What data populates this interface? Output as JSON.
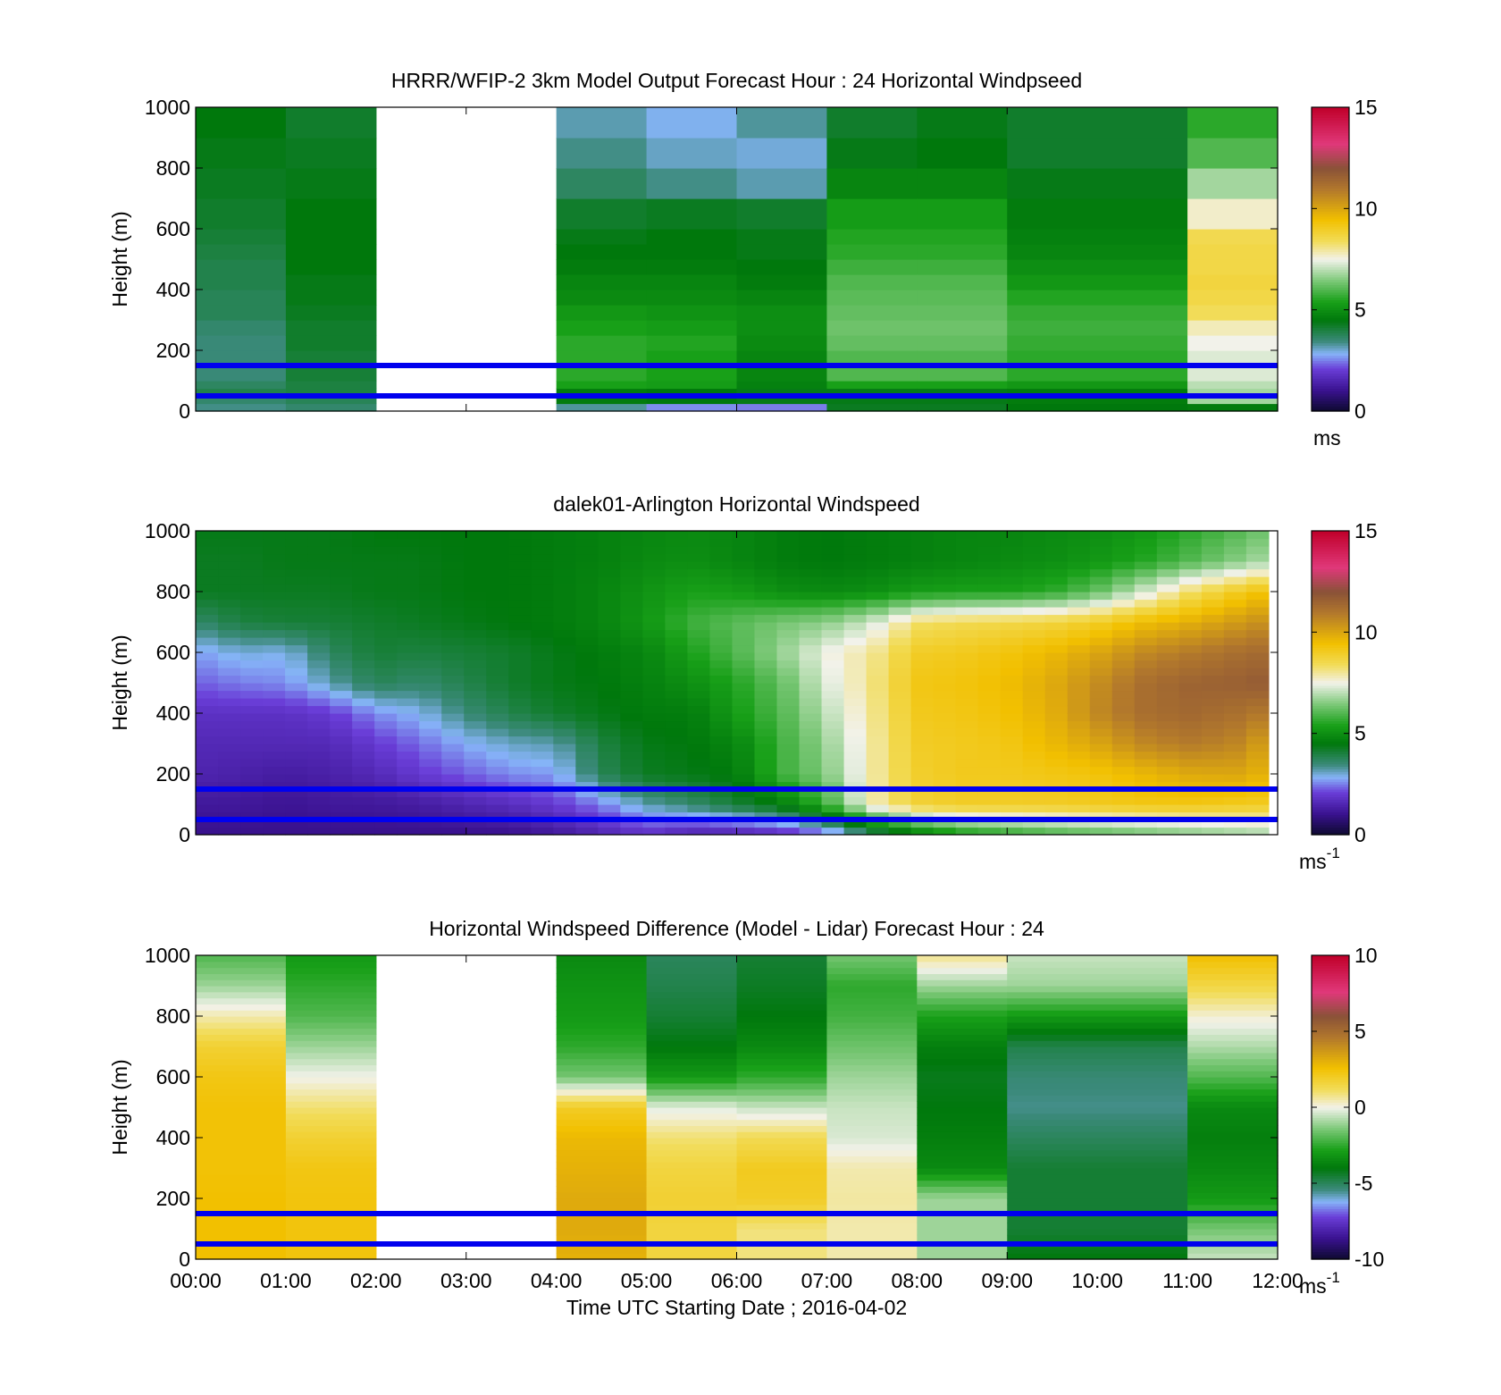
{
  "colors": {
    "ref_line": "#0000ee",
    "axis": "#000000",
    "background": "#ffffff"
  },
  "x_ticks": [
    "00:00",
    "01:00",
    "02:00",
    "03:00",
    "04:00",
    "05:00",
    "06:00",
    "07:00",
    "08:00",
    "09:00",
    "10:00",
    "11:00",
    "12:00"
  ],
  "xlabel": "Time UTC  Starting Date ; 2016-04-02",
  "chart_data": [
    {
      "type": "heatmap",
      "title": "HRRR/WFIP-2 3km Model Output   Forecast Hour : 24 Horizontal Windpseed",
      "ylabel": "Height (m)",
      "ylim": [
        0,
        1000
      ],
      "y_ticks": [
        "0",
        "200",
        "400",
        "600",
        "800",
        "1000"
      ],
      "xlim_hours": [
        0,
        12
      ],
      "colorbar": {
        "min": 0,
        "max": 15,
        "ticks": [
          "0",
          "5",
          "10",
          "15"
        ],
        "unit": "ms",
        "unit_sup": ""
      },
      "ref_lines_m": [
        50,
        150
      ],
      "layers_m": [
        0,
        25,
        50,
        75,
        100,
        150,
        200,
        250,
        300,
        350,
        400,
        450,
        500,
        550,
        600,
        700,
        800,
        900,
        1000
      ],
      "columns": [
        {
          "start": 0,
          "end": 1,
          "values": [
            3.4,
            3.6,
            3.9,
            3.7,
            3.5,
            3.5,
            3.5,
            3.6,
            3.8,
            3.8,
            3.9,
            3.9,
            4.0,
            4.1,
            4.2,
            4.3,
            4.4,
            4.5
          ]
        },
        {
          "start": 1,
          "end": 2,
          "values": [
            3.6,
            3.8,
            4.0,
            4.0,
            4.1,
            4.1,
            4.2,
            4.2,
            4.3,
            4.4,
            4.4,
            4.5,
            4.5,
            4.5,
            4.5,
            4.4,
            4.3,
            4.2
          ]
        },
        {
          "start": 4,
          "end": 5,
          "values": [
            3.3,
            4.6,
            4.6,
            5.4,
            5.6,
            5.6,
            5.6,
            5.4,
            5.2,
            4.9,
            4.8,
            4.6,
            4.5,
            4.4,
            4.2,
            3.7,
            3.4,
            3.2
          ]
        },
        {
          "start": 5,
          "end": 6,
          "values": [
            2.6,
            4.5,
            4.5,
            5.3,
            5.4,
            5.4,
            5.5,
            5.3,
            5.1,
            4.9,
            4.8,
            4.6,
            4.5,
            4.5,
            4.3,
            3.4,
            3.1,
            2.9
          ]
        },
        {
          "start": 6,
          "end": 7,
          "values": [
            2.5,
            4.4,
            4.4,
            4.7,
            4.8,
            4.8,
            4.9,
            5.0,
            5.0,
            4.8,
            4.6,
            4.5,
            4.4,
            4.4,
            4.2,
            3.2,
            3.0,
            3.3
          ]
        },
        {
          "start": 7,
          "end": 8,
          "values": [
            4.3,
            4.4,
            4.4,
            5.4,
            6.0,
            6.0,
            6.2,
            6.3,
            6.2,
            6.1,
            6.0,
            5.8,
            5.6,
            5.5,
            5.3,
            4.8,
            4.4,
            4.2
          ]
        },
        {
          "start": 8,
          "end": 9,
          "values": [
            4.3,
            4.4,
            4.4,
            5.4,
            6.0,
            6.0,
            6.2,
            6.3,
            6.2,
            6.1,
            6.0,
            5.8,
            5.6,
            5.5,
            5.3,
            4.8,
            4.5,
            4.4
          ]
        },
        {
          "start": 9,
          "end": 11,
          "values": [
            4.5,
            4.6,
            4.6,
            5.2,
            5.6,
            5.6,
            5.7,
            5.8,
            5.7,
            5.5,
            5.2,
            5.0,
            4.8,
            4.7,
            4.6,
            4.4,
            4.2,
            4.2
          ]
        },
        {
          "start": 11,
          "end": 12,
          "values": [
            4.6,
            6.8,
            6.8,
            7.0,
            7.3,
            7.3,
            7.5,
            7.8,
            8.4,
            8.6,
            8.7,
            8.6,
            8.6,
            8.5,
            7.7,
            6.8,
            6.0,
            5.6
          ]
        }
      ]
    },
    {
      "type": "heatmap",
      "title": "dalek01-Arlington  Horizontal Windspeed",
      "ylabel": "Height (m)",
      "ylim": [
        0,
        1000
      ],
      "y_ticks": [
        "0",
        "200",
        "400",
        "600",
        "800",
        "1000"
      ],
      "xlim_hours": [
        0,
        12
      ],
      "colorbar": {
        "min": 0,
        "max": 15,
        "ticks": [
          "0",
          "5",
          "10",
          "15"
        ],
        "unit": "ms",
        "unit_sup": "-1"
      },
      "ref_lines_m": [
        50,
        150
      ],
      "field": {
        "hours": [
          0,
          0.5,
          1,
          1.5,
          2,
          2.5,
          3,
          3.5,
          4,
          4.5,
          5,
          5.5,
          6,
          6.5,
          7,
          7.5,
          8,
          8.5,
          9,
          9.5,
          10,
          10.5,
          11,
          11.5,
          12
        ],
        "heights": [
          0,
          100,
          200,
          300,
          400,
          500,
          600,
          700,
          800,
          900,
          1000
        ],
        "values": [
          [
            1.0,
            1.0,
            1.0,
            1.0,
            1.0,
            1.0,
            1.0,
            1.0,
            1.2,
            1.5,
            1.8,
            1.4,
            1.4,
            1.6,
            2.2,
            3.5,
            4.5,
            5.2,
            5.5,
            5.8,
            6.0,
            6.2,
            6.4,
            6.6,
            6.8
          ],
          [
            1.2,
            1.2,
            1.1,
            1.2,
            1.2,
            1.3,
            1.5,
            1.7,
            2.0,
            2.5,
            3.2,
            3.6,
            4.1,
            4.6,
            5.8,
            7.8,
            8.8,
            9.0,
            9.0,
            9.0,
            9.1,
            9.2,
            9.2,
            9.1,
            9.0
          ],
          [
            1.5,
            1.4,
            1.3,
            1.4,
            1.6,
            2.0,
            2.3,
            2.6,
            2.7,
            3.8,
            4.3,
            4.4,
            4.6,
            5.8,
            6.5,
            7.9,
            8.9,
            9.1,
            9.1,
            9.2,
            9.3,
            9.6,
            9.9,
            10.0,
            9.6
          ],
          [
            1.6,
            1.6,
            1.6,
            1.6,
            2.0,
            2.4,
            2.8,
            3.1,
            3.2,
            4.0,
            4.4,
            4.5,
            4.8,
            5.8,
            6.7,
            7.9,
            9.0,
            9.1,
            9.2,
            9.6,
            10.0,
            10.6,
            10.9,
            10.7,
            9.9
          ],
          [
            1.8,
            1.8,
            1.8,
            2.0,
            2.6,
            2.9,
            3.5,
            3.9,
            4.2,
            4.4,
            4.6,
            4.6,
            5.3,
            6.0,
            7.0,
            8.0,
            9.1,
            9.2,
            9.4,
            9.8,
            10.6,
            11.2,
            11.4,
            11.2,
            10.8
          ],
          [
            2.3,
            2.5,
            2.6,
            3.2,
            3.8,
            3.6,
            3.9,
            4.2,
            4.4,
            4.5,
            4.7,
            5.0,
            5.5,
            6.2,
            7.3,
            8.1,
            9.2,
            9.3,
            9.5,
            9.9,
            10.5,
            11.2,
            11.5,
            11.6,
            11.8
          ],
          [
            2.7,
            3.0,
            2.9,
            3.7,
            4.1,
            4.0,
            4.1,
            4.2,
            4.4,
            4.6,
            4.8,
            5.4,
            6.0,
            6.7,
            7.5,
            8.0,
            9.0,
            9.1,
            9.3,
            9.6,
            10.0,
            10.6,
            10.9,
            11.2,
            11.4
          ],
          [
            3.6,
            4.0,
            4.1,
            4.1,
            4.2,
            4.3,
            4.4,
            4.5,
            4.6,
            4.8,
            5.2,
            5.8,
            6.1,
            6.4,
            6.6,
            7.2,
            8.3,
            8.5,
            8.6,
            8.7,
            9.0,
            9.5,
            9.8,
            10.2,
            10.6
          ],
          [
            4.3,
            4.3,
            4.3,
            4.3,
            4.4,
            4.4,
            4.5,
            4.5,
            4.6,
            4.8,
            5.1,
            5.4,
            5.3,
            5.0,
            4.9,
            5.0,
            5.3,
            5.4,
            5.4,
            5.6,
            6.2,
            7.2,
            8.3,
            9.0,
            9.6
          ],
          [
            4.3,
            4.3,
            4.4,
            4.4,
            4.4,
            4.4,
            4.5,
            4.5,
            4.6,
            4.7,
            4.9,
            5.0,
            4.8,
            4.6,
            4.5,
            4.6,
            4.7,
            4.8,
            4.9,
            5.0,
            5.2,
            5.5,
            6.0,
            6.5,
            7.0
          ],
          [
            4.4,
            4.4,
            4.4,
            4.4,
            4.5,
            4.5,
            4.5,
            4.5,
            4.6,
            4.7,
            4.8,
            4.9,
            4.8,
            4.6,
            4.5,
            4.6,
            4.7,
            4.8,
            4.8,
            4.9,
            5.0,
            5.2,
            5.6,
            6.0,
            6.5
          ]
        ]
      }
    },
    {
      "type": "heatmap",
      "title": "Horizontal Windspeed Difference (Model - Lidar) Forecast Hour : 24",
      "ylabel": "Height (m)",
      "ylim": [
        0,
        1000
      ],
      "y_ticks": [
        "0",
        "200",
        "400",
        "600",
        "800",
        "1000"
      ],
      "xlim_hours": [
        0,
        12
      ],
      "colorbar": {
        "min": -10,
        "max": 10,
        "ticks": [
          "-10",
          "-5",
          "0",
          "5",
          "10"
        ],
        "unit": "ms",
        "unit_sup": "-1"
      },
      "ref_lines_m": [
        50,
        150
      ],
      "heights": [
        0,
        100,
        200,
        300,
        400,
        500,
        600,
        700,
        800,
        900,
        1000
      ],
      "columns": [
        {
          "start": 0,
          "end": 1,
          "values": [
            2.6,
            2.6,
            2.6,
            2.5,
            2.5,
            2.5,
            2.3,
            1.8,
            0.5,
            -1.0,
            -2.0
          ]
        },
        {
          "start": 1,
          "end": 2,
          "values": [
            2.4,
            2.4,
            2.4,
            2.3,
            1.8,
            1.0,
            0.0,
            -1.0,
            -2.0,
            -2.5,
            -3.0
          ]
        },
        {
          "start": 4,
          "end": 5,
          "values": [
            3.0,
            3.2,
            3.2,
            3.0,
            2.8,
            2.0,
            -1.5,
            -2.5,
            -3.0,
            -3.2,
            -3.5
          ]
        },
        {
          "start": 5,
          "end": 6,
          "values": [
            1.6,
            1.6,
            1.8,
            1.6,
            1.0,
            -0.2,
            -3.0,
            -4.0,
            -4.5,
            -4.8,
            -5.0
          ]
        },
        {
          "start": 6,
          "end": 7,
          "values": [
            0.9,
            0.9,
            2.0,
            2.1,
            1.3,
            -0.5,
            -2.5,
            -3.5,
            -4.0,
            -4.3,
            -4.5
          ]
        },
        {
          "start": 7,
          "end": 8,
          "values": [
            0.5,
            0.5,
            0.6,
            0.5,
            -0.3,
            -0.5,
            -1.0,
            -1.6,
            -2.2,
            -2.5,
            -1.5
          ]
        },
        {
          "start": 8,
          "end": 9,
          "values": [
            -1.0,
            -1.0,
            -1.0,
            -3.5,
            -3.8,
            -4.0,
            -4.2,
            -3.8,
            -2.8,
            -1.0,
            0.8
          ]
        },
        {
          "start": 9,
          "end": 11,
          "values": [
            -4.0,
            -4.5,
            -4.5,
            -4.5,
            -5.0,
            -5.5,
            -5.3,
            -4.8,
            -3.0,
            -1.0,
            -0.5
          ]
        },
        {
          "start": 11,
          "end": 12,
          "values": [
            -0.5,
            -1.5,
            -3.0,
            -3.5,
            -3.8,
            -3.5,
            -2.0,
            -0.8,
            0.2,
            1.5,
            2.6
          ]
        }
      ]
    }
  ]
}
